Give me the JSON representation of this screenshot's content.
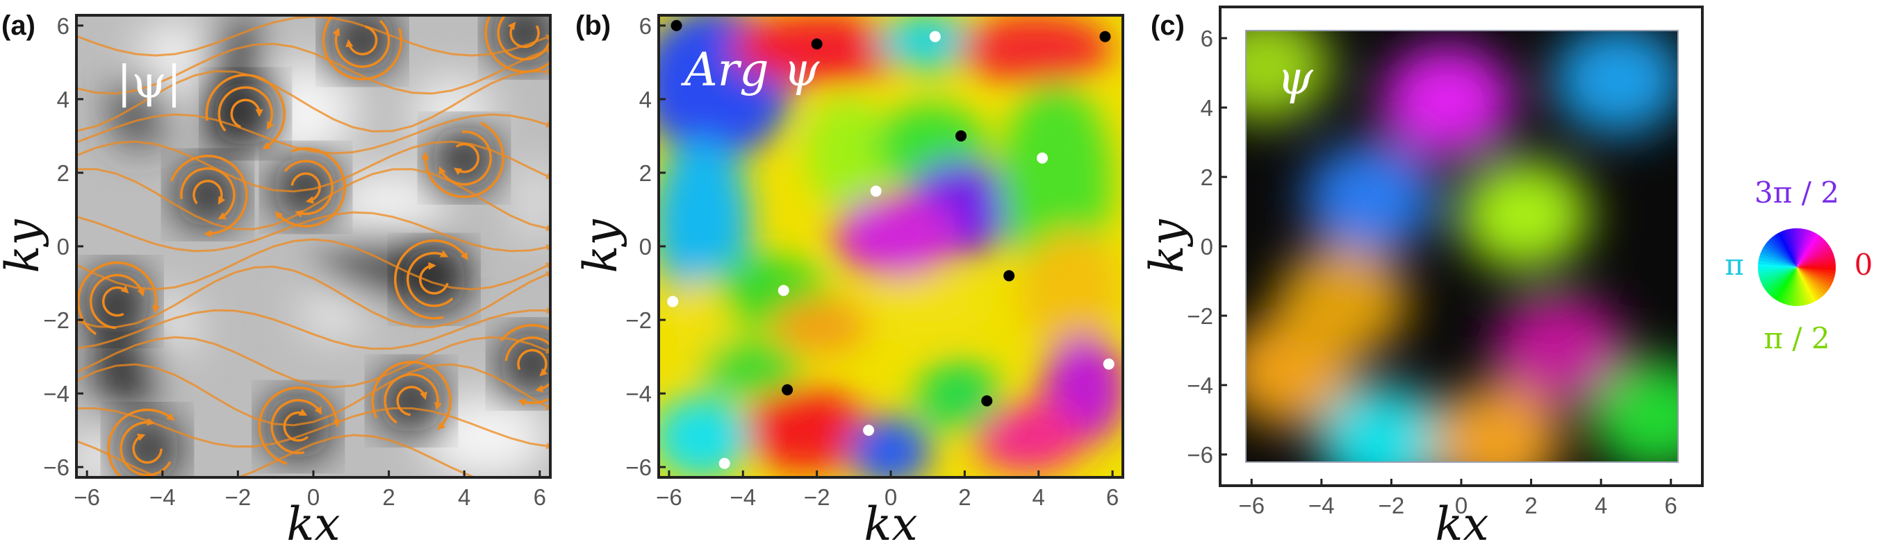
{
  "colors": {
    "stream": "#f08a1c",
    "frame": "#222222",
    "tick": "#555555",
    "label_pi": "#1ec8e0",
    "label_zero": "#e8102a",
    "label_half_pi": "#7ad400",
    "label_three_half_pi": "#7a2ce8"
  },
  "chart_data": [
    {
      "type": "heatmap",
      "panel_tag": "(a)",
      "field_label": "|ψ|",
      "xlabel": "kx",
      "ylabel": "ky",
      "xlim": [
        -6.28,
        6.28
      ],
      "ylim": [
        -6.28,
        6.28
      ],
      "xticks": [
        -6,
        -4,
        -2,
        0,
        2,
        4,
        6
      ],
      "yticks": [
        -6,
        -4,
        -2,
        0,
        2,
        4,
        6
      ],
      "tick_labels_x": [
        "−6",
        "−4",
        "−2",
        "0",
        "2",
        "4",
        "6"
      ],
      "tick_labels_y": [
        "−6",
        "−4",
        "−2",
        "0",
        "2",
        "4",
        "6"
      ],
      "colormap": "grayscale",
      "overlay": "orange streamlines",
      "vortices": [
        {
          "x": -4.4,
          "y": -5.5
        },
        {
          "x": -0.4,
          "y": -4.9
        },
        {
          "x": 2.6,
          "y": -4.2
        },
        {
          "x": -2.8,
          "y": 1.4
        },
        {
          "x": -0.2,
          "y": 1.6
        },
        {
          "x": 4.0,
          "y": 2.4
        },
        {
          "x": 1.3,
          "y": 5.6
        },
        {
          "x": 5.6,
          "y": 5.8
        },
        {
          "x": 3.2,
          "y": -0.9
        },
        {
          "x": -5.2,
          "y": -1.5
        },
        {
          "x": -1.8,
          "y": 3.6
        },
        {
          "x": 5.8,
          "y": -3.2
        }
      ]
    },
    {
      "type": "heatmap",
      "panel_tag": "(b)",
      "field_label": "Arg ψ",
      "xlabel": "kx",
      "ylabel": "ky",
      "xlim": [
        -6.28,
        6.28
      ],
      "ylim": [
        -6.28,
        6.28
      ],
      "xticks": [
        -6,
        -4,
        -2,
        0,
        2,
        4,
        6
      ],
      "yticks": [
        -6,
        -4,
        -2,
        0,
        2,
        4,
        6
      ],
      "tick_labels_x": [
        "−6",
        "−4",
        "−2",
        "0",
        "2",
        "4",
        "6"
      ],
      "tick_labels_y": [
        "−6",
        "−4",
        "−2",
        "0",
        "2",
        "4",
        "6"
      ],
      "colormap": "phase hue",
      "black_points": [
        {
          "x": -5.8,
          "y": 6.0
        },
        {
          "x": -2.0,
          "y": 5.5
        },
        {
          "x": 5.8,
          "y": 5.7
        },
        {
          "x": 1.9,
          "y": 3.0
        },
        {
          "x": 3.2,
          "y": -0.8
        },
        {
          "x": -2.8,
          "y": -3.9
        },
        {
          "x": 2.6,
          "y": -4.2
        }
      ],
      "white_points": [
        {
          "x": 1.2,
          "y": 5.7
        },
        {
          "x": 4.1,
          "y": 2.4
        },
        {
          "x": -0.4,
          "y": 1.5
        },
        {
          "x": -2.9,
          "y": -1.2
        },
        {
          "x": -5.9,
          "y": -1.5
        },
        {
          "x": 5.9,
          "y": -3.2
        },
        {
          "x": -0.6,
          "y": -5.0
        },
        {
          "x": -4.5,
          "y": -5.9
        }
      ]
    },
    {
      "type": "heatmap",
      "panel_tag": "(c)",
      "field_label": "ψ",
      "xlabel": "kx",
      "ylabel": "ky",
      "xlim": [
        -6.9,
        6.9
      ],
      "ylim": [
        -6.9,
        6.9
      ],
      "xticks": [
        -6,
        -4,
        -2,
        0,
        2,
        4,
        6
      ],
      "yticks": [
        -6,
        -4,
        -2,
        0,
        2,
        4,
        6
      ],
      "tick_labels_x": [
        "−6",
        "−4",
        "−2",
        "0",
        "2",
        "4",
        "6"
      ],
      "tick_labels_y": [
        "−6",
        "−4",
        "−2",
        "0",
        "2",
        "4",
        "6"
      ],
      "colormap": "complex domain coloring",
      "blobs": [
        {
          "x": -0.4,
          "y": 4.2,
          "color": "#e020f0"
        },
        {
          "x": 4.5,
          "y": 4.8,
          "color": "#1a9ee8"
        },
        {
          "x": 1.8,
          "y": 0.9,
          "color": "#a8f018"
        },
        {
          "x": -2.6,
          "y": 1.4,
          "color": "#2a7cf0"
        },
        {
          "x": -4.9,
          "y": -3.6,
          "color": "#f0a018"
        },
        {
          "x": 2.8,
          "y": -3.0,
          "color": "#c01898"
        },
        {
          "x": -2.2,
          "y": -5.6,
          "color": "#10e0e8"
        },
        {
          "x": 5.6,
          "y": -4.9,
          "color": "#22d830"
        },
        {
          "x": 1.0,
          "y": -5.6,
          "color": "#f0a020"
        },
        {
          "x": -5.6,
          "y": 5.2,
          "color": "#9cd414"
        },
        {
          "x": -3.4,
          "y": -1.6,
          "color": "#e0a010"
        }
      ]
    }
  ],
  "phase_wheel": {
    "label_top": "3π / 2",
    "label_left": "π",
    "label_right": "0",
    "label_bottom": "π / 2"
  }
}
